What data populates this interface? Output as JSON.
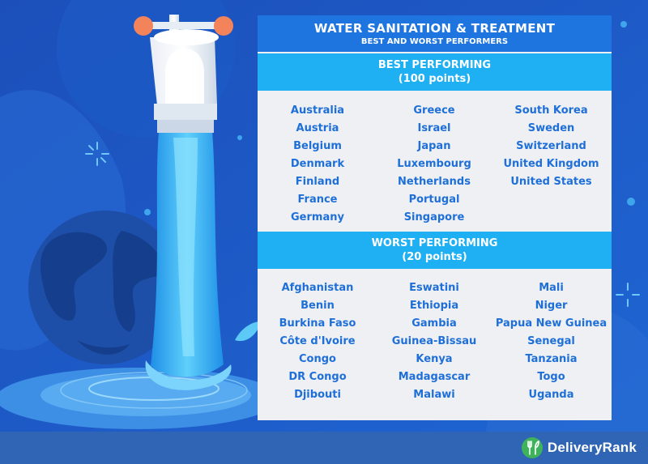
{
  "header": {
    "title": "WATER SANITATION & TREATMENT",
    "subtitle": "BEST AND WORST PERFORMERS"
  },
  "best": {
    "heading": "BEST PERFORMING",
    "points": "(100 points)",
    "columns": [
      [
        "Australia",
        "Austria",
        "Belgium",
        "Denmark",
        "Finland",
        "France",
        "Germany"
      ],
      [
        "Greece",
        "Israel",
        "Japan",
        "Luxembourg",
        "Netherlands",
        "Portugal",
        "Singapore"
      ],
      [
        "South Korea",
        "Sweden",
        "Switzerland",
        "United Kingdom",
        "United States"
      ]
    ]
  },
  "worst": {
    "heading": "WORST PERFORMING",
    "points": "(20 points)",
    "columns": [
      [
        "Afghanistan",
        "Benin",
        "Burkina Faso",
        "Côte d'Ivoire",
        "Congo",
        "DR Congo",
        "Djibouti"
      ],
      [
        "Eswatini",
        "Ethiopia",
        "Gambia",
        "Guinea-Bissau",
        "Kenya",
        "Madagascar",
        "Malawi"
      ],
      [
        "Mali",
        "Niger",
        "Papua New Guinea",
        "Senegal",
        "Tanzania",
        "Togo",
        "Uganda"
      ]
    ]
  },
  "footer": {
    "brand": "DeliveryRank"
  },
  "colors": {
    "background": "#1b57c4",
    "title_bar": "#1f75e0",
    "section_bar": "#1eb0f3",
    "country_text": "#1f6fd8",
    "panel": "#eef0f3",
    "faucet_handle": "#f3835a",
    "footer": "#3064b4",
    "logo_green": "#3fb25c"
  },
  "icons": {
    "illustration": "water-faucet-globe-illustration",
    "logo": "fork-leaf-logo-icon"
  }
}
